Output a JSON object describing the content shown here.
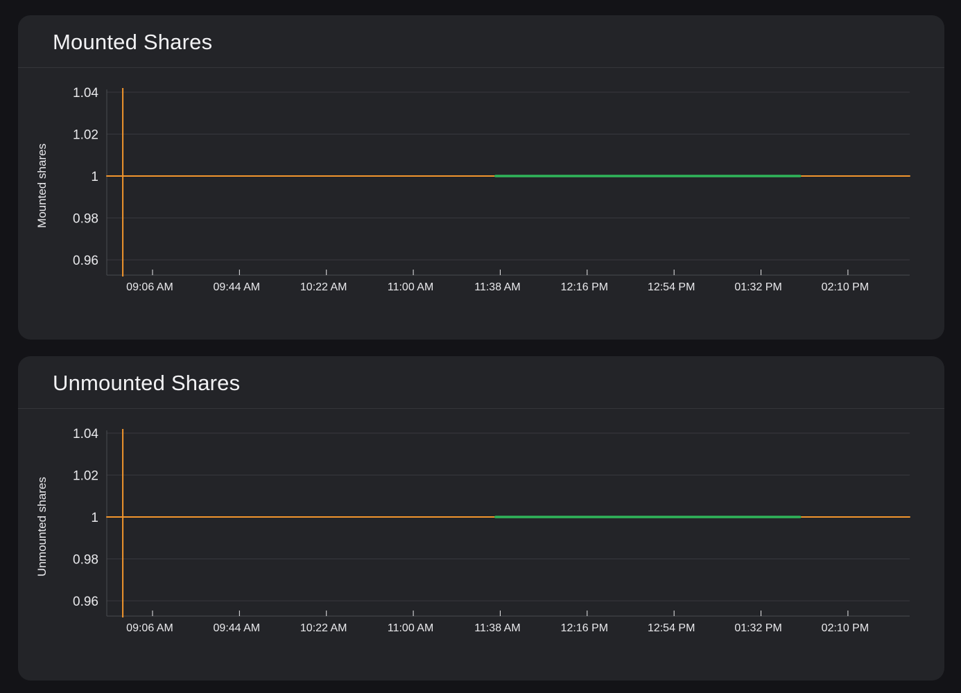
{
  "chart_data": [
    {
      "type": "line",
      "title": "Mounted Shares",
      "xlabel": "",
      "ylabel": "Mounted shares",
      "y_ticks": [
        "1.04",
        "1.02",
        "1",
        "0.98",
        "0.96"
      ],
      "y_tick_values": [
        1.04,
        1.02,
        1,
        0.98,
        0.96
      ],
      "ylim": [
        0.953,
        1.04
      ],
      "x_ticks": [
        "09:06 AM",
        "09:44 AM",
        "10:22 AM",
        "11:00 AM",
        "11:38 AM",
        "12:16 PM",
        "12:54 PM",
        "01:32 PM",
        "02:10 PM"
      ],
      "x_tick_minutes": [
        546,
        584,
        622,
        660,
        698,
        736,
        774,
        812,
        850
      ],
      "xlim_minutes": [
        526,
        877
      ],
      "marker_line_minutes": 533,
      "grid": true,
      "legend": "none",
      "series": [
        {
          "color": "#f2962d",
          "segments": [
            {
              "x_start_minutes": 526,
              "x_end_minutes": 696,
              "y": 1
            },
            {
              "x_start_minutes": 829,
              "x_end_minutes": 877,
              "y": 1
            }
          ]
        },
        {
          "color": "#2fb55a",
          "segments": [
            {
              "x_start_minutes": 696,
              "x_end_minutes": 829,
              "y": 1
            }
          ]
        }
      ]
    },
    {
      "type": "line",
      "title": "Unmounted Shares",
      "xlabel": "",
      "ylabel": "Unmounted shares",
      "y_ticks": [
        "1.04",
        "1.02",
        "1",
        "0.98",
        "0.96"
      ],
      "y_tick_values": [
        1.04,
        1.02,
        1,
        0.98,
        0.96
      ],
      "ylim": [
        0.953,
        1.04
      ],
      "x_ticks": [
        "09:06 AM",
        "09:44 AM",
        "10:22 AM",
        "11:00 AM",
        "11:38 AM",
        "12:16 PM",
        "12:54 PM",
        "01:32 PM",
        "02:10 PM"
      ],
      "x_tick_minutes": [
        546,
        584,
        622,
        660,
        698,
        736,
        774,
        812,
        850
      ],
      "xlim_minutes": [
        526,
        877
      ],
      "marker_line_minutes": 533,
      "grid": true,
      "legend": "none",
      "series": [
        {
          "color": "#f2962d",
          "segments": [
            {
              "x_start_minutes": 526,
              "x_end_minutes": 696,
              "y": 1
            },
            {
              "x_start_minutes": 829,
              "x_end_minutes": 877,
              "y": 1
            }
          ]
        },
        {
          "color": "#2fb55a",
          "segments": [
            {
              "x_start_minutes": 696,
              "x_end_minutes": 829,
              "y": 1
            }
          ]
        }
      ]
    }
  ],
  "colors": {
    "page_bg": "#131317",
    "card_bg": "#232428",
    "grid": "#38393e",
    "axis": "#4a4b50",
    "text": "#e9e9ec"
  }
}
